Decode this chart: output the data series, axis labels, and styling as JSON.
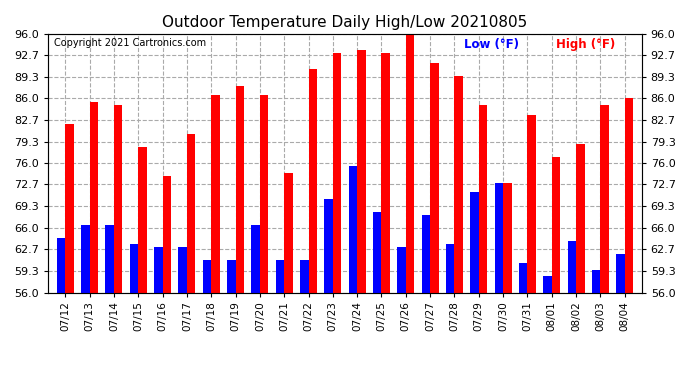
{
  "title": "Outdoor Temperature Daily High/Low 20210805",
  "copyright": "Copyright 2021 Cartronics.com",
  "legend_low": "Low",
  "legend_high": "High",
  "legend_unit": "(°F)",
  "dates": [
    "07/12",
    "07/13",
    "07/14",
    "07/15",
    "07/16",
    "07/17",
    "07/18",
    "07/19",
    "07/20",
    "07/21",
    "07/22",
    "07/23",
    "07/24",
    "07/25",
    "07/26",
    "07/27",
    "07/28",
    "07/29",
    "07/30",
    "07/31",
    "08/01",
    "08/02",
    "08/03",
    "08/04"
  ],
  "highs": [
    82.0,
    85.5,
    85.0,
    78.5,
    74.0,
    80.5,
    86.5,
    88.0,
    86.5,
    74.5,
    90.5,
    93.0,
    93.5,
    93.0,
    96.0,
    91.5,
    89.5,
    85.0,
    73.0,
    83.5,
    77.0,
    79.0,
    85.0,
    86.0
  ],
  "lows": [
    64.5,
    66.5,
    66.5,
    63.5,
    63.0,
    63.0,
    61.0,
    61.0,
    66.5,
    61.0,
    61.0,
    70.5,
    75.5,
    68.5,
    63.0,
    68.0,
    63.5,
    71.5,
    73.0,
    60.5,
    58.5,
    64.0,
    59.5,
    62.0
  ],
  "bar_color_high": "#ff0000",
  "bar_color_low": "#0000ff",
  "background": "#ffffff",
  "grid_color": "#aaaaaa",
  "ymin": 56.0,
  "ymax": 96.0,
  "yticks": [
    56.0,
    59.3,
    62.7,
    66.0,
    69.3,
    72.7,
    76.0,
    79.3,
    82.7,
    86.0,
    89.3,
    92.7,
    96.0
  ]
}
